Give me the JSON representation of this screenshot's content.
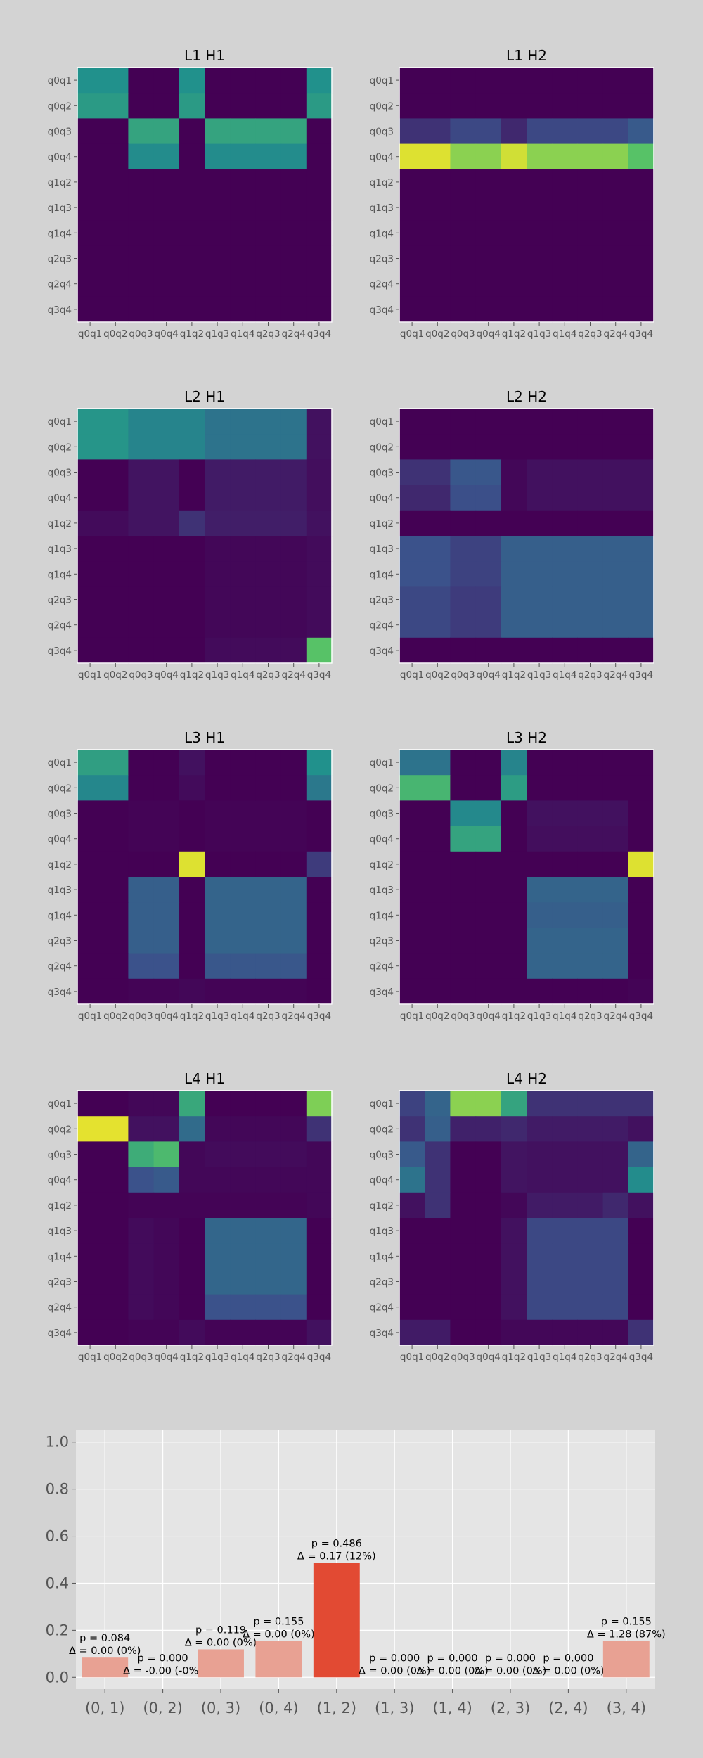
{
  "chart_data": [
    {
      "type": "heatmap",
      "title": "L1 H1",
      "row_labels": [
        "q0q1",
        "q0q2",
        "q0q3",
        "q0q4",
        "q1q2",
        "q1q3",
        "q1q4",
        "q2q3",
        "q2q4",
        "q3q4"
      ],
      "col_labels": [
        "q0q1",
        "q0q2",
        "q0q3",
        "q0q4",
        "q1q2",
        "q1q3",
        "q1q4",
        "q2q3",
        "q2q4",
        "q3q4"
      ],
      "color_scale": "viridis",
      "values": [
        [
          0.5,
          0.5,
          0.0,
          0.0,
          0.5,
          0.0,
          0.0,
          0.0,
          0.0,
          0.5
        ],
        [
          0.54,
          0.54,
          0.0,
          0.0,
          0.54,
          0.0,
          0.0,
          0.0,
          0.0,
          0.54
        ],
        [
          0.0,
          0.0,
          0.58,
          0.58,
          0.0,
          0.58,
          0.58,
          0.58,
          0.58,
          0.0
        ],
        [
          0.0,
          0.0,
          0.48,
          0.48,
          0.0,
          0.48,
          0.48,
          0.48,
          0.48,
          0.0
        ],
        [
          0.0,
          0.0,
          0.0,
          0.0,
          0.0,
          0.0,
          0.0,
          0.0,
          0.0,
          0.0
        ],
        [
          0.0,
          0.0,
          0.0,
          0.0,
          0.0,
          0.0,
          0.0,
          0.0,
          0.0,
          0.0
        ],
        [
          0.0,
          0.0,
          0.0,
          0.0,
          0.0,
          0.0,
          0.0,
          0.0,
          0.0,
          0.0
        ],
        [
          0.0,
          0.0,
          0.0,
          0.0,
          0.0,
          0.0,
          0.0,
          0.0,
          0.0,
          0.0
        ],
        [
          0.0,
          0.0,
          0.0,
          0.0,
          0.0,
          0.0,
          0.0,
          0.0,
          0.0,
          0.0
        ],
        [
          0.0,
          0.0,
          0.0,
          0.0,
          0.0,
          0.0,
          0.0,
          0.0,
          0.0,
          0.0
        ]
      ]
    },
    {
      "type": "heatmap",
      "title": "L1 H2",
      "row_labels": [
        "q0q1",
        "q0q2",
        "q0q3",
        "q0q4",
        "q1q2",
        "q1q3",
        "q1q4",
        "q2q3",
        "q2q4",
        "q3q4"
      ],
      "col_labels": [
        "q0q1",
        "q0q2",
        "q0q3",
        "q0q4",
        "q1q2",
        "q1q3",
        "q1q4",
        "q2q3",
        "q2q4",
        "q3q4"
      ],
      "color_scale": "viridis",
      "values": [
        [
          0.0,
          0.0,
          0.0,
          0.0,
          0.0,
          0.0,
          0.0,
          0.0,
          0.0,
          0.0
        ],
        [
          0.0,
          0.0,
          0.0,
          0.0,
          0.0,
          0.0,
          0.0,
          0.0,
          0.0,
          0.0
        ],
        [
          0.15,
          0.15,
          0.22,
          0.22,
          0.12,
          0.22,
          0.22,
          0.22,
          0.22,
          0.28
        ],
        [
          0.95,
          0.95,
          0.82,
          0.82,
          0.93,
          0.82,
          0.82,
          0.82,
          0.82,
          0.72
        ],
        [
          0.0,
          0.0,
          0.0,
          0.0,
          0.0,
          0.0,
          0.0,
          0.0,
          0.0,
          0.0
        ],
        [
          0.0,
          0.0,
          0.0,
          0.0,
          0.0,
          0.0,
          0.0,
          0.0,
          0.0,
          0.0
        ],
        [
          0.0,
          0.0,
          0.0,
          0.0,
          0.0,
          0.0,
          0.0,
          0.0,
          0.0,
          0.0
        ],
        [
          0.0,
          0.0,
          0.0,
          0.0,
          0.0,
          0.0,
          0.0,
          0.0,
          0.0,
          0.0
        ],
        [
          0.0,
          0.0,
          0.0,
          0.0,
          0.0,
          0.0,
          0.0,
          0.0,
          0.0,
          0.0
        ],
        [
          0.0,
          0.0,
          0.0,
          0.0,
          0.0,
          0.0,
          0.0,
          0.0,
          0.0,
          0.0
        ]
      ]
    },
    {
      "type": "heatmap",
      "title": "L2 H1",
      "row_labels": [
        "q0q1",
        "q0q2",
        "q0q3",
        "q0q4",
        "q1q2",
        "q1q3",
        "q1q4",
        "q2q3",
        "q2q4",
        "q3q4"
      ],
      "col_labels": [
        "q0q1",
        "q0q2",
        "q0q3",
        "q0q4",
        "q1q2",
        "q1q3",
        "q1q4",
        "q2q3",
        "q2q4",
        "q3q4"
      ],
      "color_scale": "viridis",
      "values": [
        [
          0.52,
          0.52,
          0.45,
          0.45,
          0.45,
          0.38,
          0.38,
          0.38,
          0.38,
          0.05
        ],
        [
          0.52,
          0.52,
          0.45,
          0.45,
          0.45,
          0.38,
          0.38,
          0.38,
          0.38,
          0.05
        ],
        [
          0.0,
          0.0,
          0.06,
          0.06,
          0.0,
          0.08,
          0.08,
          0.08,
          0.08,
          0.04
        ],
        [
          0.0,
          0.0,
          0.06,
          0.06,
          0.0,
          0.08,
          0.08,
          0.08,
          0.08,
          0.04
        ],
        [
          0.03,
          0.03,
          0.06,
          0.06,
          0.15,
          0.09,
          0.09,
          0.09,
          0.09,
          0.05
        ],
        [
          0.0,
          0.0,
          0.0,
          0.0,
          0.0,
          0.02,
          0.02,
          0.02,
          0.02,
          0.03
        ],
        [
          0.0,
          0.0,
          0.0,
          0.0,
          0.0,
          0.02,
          0.02,
          0.02,
          0.02,
          0.03
        ],
        [
          0.0,
          0.0,
          0.0,
          0.0,
          0.0,
          0.02,
          0.02,
          0.02,
          0.02,
          0.03
        ],
        [
          0.0,
          0.0,
          0.0,
          0.0,
          0.0,
          0.02,
          0.02,
          0.02,
          0.02,
          0.03
        ],
        [
          0.0,
          0.0,
          0.0,
          0.0,
          0.0,
          0.03,
          0.03,
          0.03,
          0.03,
          0.72
        ]
      ]
    },
    {
      "type": "heatmap",
      "title": "L2 H2",
      "row_labels": [
        "q0q1",
        "q0q2",
        "q0q3",
        "q0q4",
        "q1q2",
        "q1q3",
        "q1q4",
        "q2q3",
        "q2q4",
        "q3q4"
      ],
      "col_labels": [
        "q0q1",
        "q0q2",
        "q0q3",
        "q0q4",
        "q1q2",
        "q1q3",
        "q1q4",
        "q2q3",
        "q2q4",
        "q3q4"
      ],
      "color_scale": "viridis",
      "values": [
        [
          0.0,
          0.0,
          0.0,
          0.0,
          0.0,
          0.0,
          0.0,
          0.0,
          0.0,
          0.0
        ],
        [
          0.0,
          0.0,
          0.0,
          0.0,
          0.0,
          0.0,
          0.0,
          0.0,
          0.0,
          0.0
        ],
        [
          0.15,
          0.15,
          0.27,
          0.27,
          0.02,
          0.05,
          0.05,
          0.05,
          0.05,
          0.05
        ],
        [
          0.12,
          0.12,
          0.24,
          0.24,
          0.02,
          0.05,
          0.05,
          0.05,
          0.05,
          0.05
        ],
        [
          0.0,
          0.0,
          0.0,
          0.0,
          0.0,
          0.0,
          0.0,
          0.0,
          0.0,
          0.0
        ],
        [
          0.25,
          0.25,
          0.2,
          0.2,
          0.3,
          0.3,
          0.3,
          0.3,
          0.3,
          0.3
        ],
        [
          0.25,
          0.25,
          0.2,
          0.2,
          0.3,
          0.3,
          0.3,
          0.3,
          0.3,
          0.3
        ],
        [
          0.22,
          0.22,
          0.18,
          0.18,
          0.3,
          0.3,
          0.3,
          0.3,
          0.3,
          0.3
        ],
        [
          0.22,
          0.22,
          0.18,
          0.18,
          0.3,
          0.3,
          0.3,
          0.3,
          0.3,
          0.3
        ],
        [
          0.0,
          0.0,
          0.0,
          0.0,
          0.0,
          0.0,
          0.0,
          0.0,
          0.0,
          0.0
        ]
      ]
    },
    {
      "type": "heatmap",
      "title": "L3 H1",
      "row_labels": [
        "q0q1",
        "q0q2",
        "q0q3",
        "q0q4",
        "q1q2",
        "q1q3",
        "q1q4",
        "q2q3",
        "q2q4",
        "q3q4"
      ],
      "col_labels": [
        "q0q1",
        "q0q2",
        "q0q3",
        "q0q4",
        "q1q2",
        "q1q3",
        "q1q4",
        "q2q3",
        "q2q4",
        "q3q4"
      ],
      "color_scale": "viridis",
      "values": [
        [
          0.56,
          0.56,
          0.0,
          0.0,
          0.05,
          0.0,
          0.0,
          0.0,
          0.0,
          0.5
        ],
        [
          0.46,
          0.46,
          0.0,
          0.0,
          0.03,
          0.0,
          0.0,
          0.0,
          0.0,
          0.4
        ],
        [
          0.0,
          0.0,
          0.01,
          0.01,
          0.0,
          0.01,
          0.01,
          0.01,
          0.01,
          0.0
        ],
        [
          0.0,
          0.0,
          0.01,
          0.01,
          0.0,
          0.01,
          0.01,
          0.01,
          0.01,
          0.0
        ],
        [
          0.0,
          0.0,
          0.0,
          0.0,
          0.95,
          0.0,
          0.0,
          0.0,
          0.0,
          0.18
        ],
        [
          0.0,
          0.0,
          0.3,
          0.3,
          0.0,
          0.32,
          0.32,
          0.32,
          0.32,
          0.0
        ],
        [
          0.0,
          0.0,
          0.3,
          0.3,
          0.0,
          0.32,
          0.32,
          0.32,
          0.32,
          0.0
        ],
        [
          0.0,
          0.0,
          0.3,
          0.3,
          0.0,
          0.32,
          0.32,
          0.32,
          0.32,
          0.0
        ],
        [
          0.0,
          0.0,
          0.25,
          0.25,
          0.0,
          0.27,
          0.27,
          0.27,
          0.27,
          0.0
        ],
        [
          0.0,
          0.0,
          0.01,
          0.01,
          0.02,
          0.01,
          0.01,
          0.01,
          0.01,
          0.0
        ]
      ]
    },
    {
      "type": "heatmap",
      "title": "L3 H2",
      "row_labels": [
        "q0q1",
        "q0q2",
        "q0q3",
        "q0q4",
        "q1q2",
        "q1q3",
        "q1q4",
        "q2q3",
        "q2q4",
        "q3q4"
      ],
      "col_labels": [
        "q0q1",
        "q0q2",
        "q0q3",
        "q0q4",
        "q1q2",
        "q1q3",
        "q1q4",
        "q2q3",
        "q2q4",
        "q3q4"
      ],
      "color_scale": "viridis",
      "values": [
        [
          0.38,
          0.38,
          0.0,
          0.0,
          0.45,
          0.0,
          0.0,
          0.0,
          0.0,
          0.0
        ],
        [
          0.66,
          0.66,
          0.0,
          0.0,
          0.55,
          0.0,
          0.0,
          0.0,
          0.0,
          0.0
        ],
        [
          0.0,
          0.0,
          0.47,
          0.47,
          0.0,
          0.05,
          0.05,
          0.05,
          0.05,
          0.0
        ],
        [
          0.0,
          0.0,
          0.58,
          0.58,
          0.0,
          0.04,
          0.04,
          0.04,
          0.04,
          0.0
        ],
        [
          0.0,
          0.0,
          0.0,
          0.0,
          0.0,
          0.0,
          0.0,
          0.0,
          0.0,
          0.95
        ],
        [
          0.0,
          0.0,
          0.0,
          0.0,
          0.0,
          0.32,
          0.32,
          0.32,
          0.32,
          0.0
        ],
        [
          0.0,
          0.0,
          0.0,
          0.0,
          0.0,
          0.3,
          0.3,
          0.3,
          0.3,
          0.0
        ],
        [
          0.0,
          0.0,
          0.0,
          0.0,
          0.0,
          0.32,
          0.32,
          0.32,
          0.32,
          0.0
        ],
        [
          0.0,
          0.0,
          0.0,
          0.0,
          0.0,
          0.32,
          0.32,
          0.32,
          0.32,
          0.0
        ],
        [
          0.0,
          0.0,
          0.0,
          0.0,
          0.0,
          0.0,
          0.0,
          0.0,
          0.0,
          0.01
        ]
      ]
    },
    {
      "type": "heatmap",
      "title": "L4 H1",
      "row_labels": [
        "q0q1",
        "q0q2",
        "q0q3",
        "q0q4",
        "q1q2",
        "q1q3",
        "q1q4",
        "q2q3",
        "q2q4",
        "q3q4"
      ],
      "col_labels": [
        "q0q1",
        "q0q2",
        "q0q3",
        "q0q4",
        "q1q2",
        "q1q3",
        "q1q4",
        "q2q3",
        "q2q4",
        "q3q4"
      ],
      "color_scale": "viridis",
      "values": [
        [
          0.0,
          0.0,
          0.02,
          0.02,
          0.6,
          0.0,
          0.0,
          0.0,
          0.0,
          0.8
        ],
        [
          0.96,
          0.96,
          0.05,
          0.05,
          0.35,
          0.02,
          0.02,
          0.02,
          0.02,
          0.15
        ],
        [
          0.0,
          0.0,
          0.62,
          0.68,
          0.02,
          0.03,
          0.03,
          0.03,
          0.03,
          0.02
        ],
        [
          0.0,
          0.0,
          0.25,
          0.28,
          0.02,
          0.02,
          0.02,
          0.02,
          0.02,
          0.02
        ],
        [
          0.0,
          0.0,
          0.01,
          0.01,
          0.01,
          0.01,
          0.01,
          0.01,
          0.01,
          0.02
        ],
        [
          0.0,
          0.0,
          0.03,
          0.02,
          0.0,
          0.33,
          0.33,
          0.33,
          0.33,
          0.0
        ],
        [
          0.0,
          0.0,
          0.03,
          0.02,
          0.0,
          0.33,
          0.33,
          0.33,
          0.33,
          0.0
        ],
        [
          0.0,
          0.0,
          0.03,
          0.02,
          0.0,
          0.33,
          0.33,
          0.33,
          0.33,
          0.0
        ],
        [
          0.0,
          0.0,
          0.03,
          0.02,
          0.0,
          0.25,
          0.25,
          0.25,
          0.25,
          0.0
        ],
        [
          0.0,
          0.0,
          0.01,
          0.01,
          0.03,
          0.01,
          0.01,
          0.01,
          0.01,
          0.05
        ]
      ]
    },
    {
      "type": "heatmap",
      "title": "L4 H2",
      "row_labels": [
        "q0q1",
        "q0q2",
        "q0q3",
        "q0q4",
        "q1q2",
        "q1q3",
        "q1q4",
        "q2q3",
        "q2q4",
        "q3q4"
      ],
      "col_labels": [
        "q0q1",
        "q0q2",
        "q0q3",
        "q0q4",
        "q1q2",
        "q1q3",
        "q1q4",
        "q2q3",
        "q2q4",
        "q3q4"
      ],
      "color_scale": "viridis",
      "values": [
        [
          0.2,
          0.32,
          0.82,
          0.82,
          0.58,
          0.15,
          0.15,
          0.15,
          0.15,
          0.15
        ],
        [
          0.15,
          0.3,
          0.1,
          0.1,
          0.12,
          0.08,
          0.08,
          0.08,
          0.08,
          0.05
        ],
        [
          0.28,
          0.15,
          0.0,
          0.0,
          0.06,
          0.05,
          0.05,
          0.05,
          0.05,
          0.32
        ],
        [
          0.38,
          0.15,
          0.0,
          0.0,
          0.06,
          0.05,
          0.05,
          0.05,
          0.05,
          0.48
        ],
        [
          0.05,
          0.15,
          0.0,
          0.0,
          0.02,
          0.08,
          0.08,
          0.08,
          0.12,
          0.05
        ],
        [
          0.0,
          0.0,
          0.0,
          0.0,
          0.05,
          0.22,
          0.22,
          0.22,
          0.22,
          0.0
        ],
        [
          0.0,
          0.0,
          0.0,
          0.0,
          0.05,
          0.22,
          0.22,
          0.22,
          0.22,
          0.0
        ],
        [
          0.0,
          0.0,
          0.0,
          0.0,
          0.05,
          0.22,
          0.22,
          0.22,
          0.22,
          0.0
        ],
        [
          0.0,
          0.0,
          0.0,
          0.0,
          0.05,
          0.22,
          0.22,
          0.22,
          0.22,
          0.0
        ],
        [
          0.08,
          0.08,
          0.0,
          0.0,
          0.02,
          0.02,
          0.02,
          0.02,
          0.02,
          0.15
        ]
      ]
    },
    {
      "type": "bar",
      "title": "",
      "categories": [
        "(0, 1)",
        "(0, 2)",
        "(0, 3)",
        "(0, 4)",
        "(1, 2)",
        "(1, 3)",
        "(1, 4)",
        "(2, 3)",
        "(2, 4)",
        "(3, 4)"
      ],
      "values": [
        0.084,
        0.0,
        0.119,
        0.155,
        0.486,
        0.0,
        0.0,
        0.0,
        0.0,
        0.155
      ],
      "p_labels": [
        "p = 0.084",
        "p = 0.000",
        "p = 0.119",
        "p = 0.155",
        "p = 0.486",
        "p = 0.000",
        "p = 0.000",
        "p = 0.000",
        "p = 0.000",
        "p = 0.155"
      ],
      "delta_labels": [
        "Δ = 0.00 (0%)",
        "Δ = -0.00 (-0%)",
        "Δ = 0.00 (0%)",
        "Δ = 0.00 (0%)",
        "Δ = 0.17 (12%)",
        "Δ = 0.00 (0%)",
        "Δ = 0.00 (0%)",
        "Δ = 0.00 (0%)",
        "Δ = 0.00 (0%)",
        "Δ = 1.28 (87%)"
      ],
      "highlight_index": 4,
      "colors": {
        "highlight": "#e24a33",
        "normal": "#e8a193"
      },
      "ylim": [
        -0.05,
        1.05
      ],
      "yticks": [
        0.0,
        0.2,
        0.4,
        0.6,
        0.8,
        1.0
      ],
      "ytick_labels": [
        "0.0",
        "0.2",
        "0.4",
        "0.6",
        "0.8",
        "1.0"
      ],
      "grid": true,
      "xlabel": "",
      "ylabel": ""
    }
  ]
}
